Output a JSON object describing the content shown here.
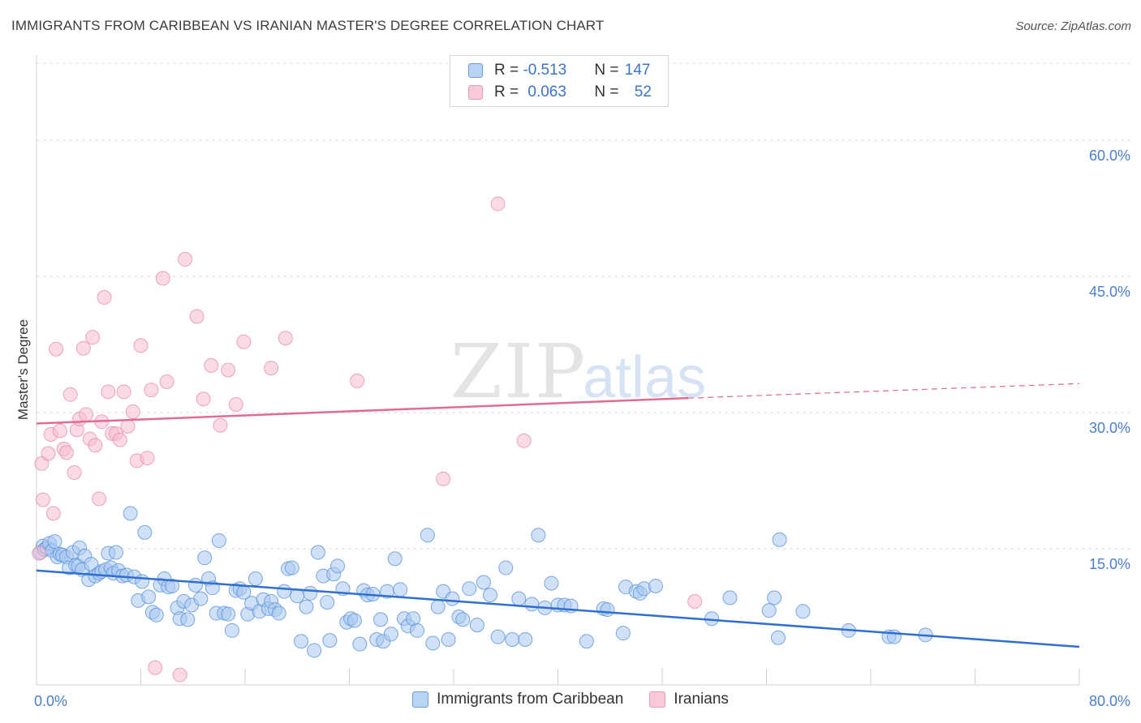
{
  "title": "IMMIGRANTS FROM CARIBBEAN VS IRANIAN MASTER'S DEGREE CORRELATION CHART",
  "source": "Source: ZipAtlas.com",
  "watermark": {
    "zip": "ZIP",
    "atlas": "atlas"
  },
  "colors": {
    "blue_fill": "#a9c8f1",
    "blue_stroke": "#5b93dc",
    "blue_line": "#2f6fd0",
    "pink_fill": "#f6bcd0",
    "pink_stroke": "#ea8eae",
    "pink_line": "#e26b93",
    "grid": "#dddddd",
    "tick_text": "#4a7fcf"
  },
  "legend": {
    "rows": [
      {
        "r_label": "R = ",
        "r_value": "-0.513",
        "n_label": "N = ",
        "n_value": "147"
      },
      {
        "r_label": "R = ",
        "r_value": "0.063",
        "n_label": "N = ",
        "n_value": "52"
      }
    ]
  },
  "bottom_legend": [
    "Immigrants from Caribbean",
    "Iranians"
  ],
  "chart_data": {
    "type": "scatter",
    "ylabel": "Master's Degree",
    "xlim": [
      0,
      80
    ],
    "ylim": [
      0,
      60
    ],
    "x_tick_labels": [
      "0.0%",
      "80.0%"
    ],
    "y_ticks": [
      15,
      30,
      45,
      60
    ],
    "y_tick_labels": [
      "15.0%",
      "30.0%",
      "45.0%",
      "60.0%"
    ],
    "grid": true,
    "series": [
      {
        "name": "Immigrants from Caribbean",
        "trend": {
          "x": [
            0,
            80
          ],
          "y": [
            12.6,
            4.2
          ]
        },
        "points": [
          [
            0.3,
            14.6
          ],
          [
            0.5,
            15.3
          ],
          [
            0.6,
            14.9
          ],
          [
            0.8,
            15.1
          ],
          [
            1.0,
            15.6
          ],
          [
            1.2,
            14.8
          ],
          [
            1.4,
            15.8
          ],
          [
            1.6,
            14.1
          ],
          [
            1.8,
            14.4
          ],
          [
            2.0,
            14.3
          ],
          [
            2.3,
            14.1
          ],
          [
            2.5,
            12.9
          ],
          [
            2.8,
            14.6
          ],
          [
            3.0,
            13.2
          ],
          [
            3.2,
            13.1
          ],
          [
            3.3,
            15.1
          ],
          [
            3.5,
            12.7
          ],
          [
            3.7,
            14.2
          ],
          [
            4.0,
            11.6
          ],
          [
            4.2,
            13.3
          ],
          [
            4.5,
            12.0
          ],
          [
            4.8,
            12.3
          ],
          [
            5.0,
            12.5
          ],
          [
            5.3,
            12.7
          ],
          [
            5.5,
            14.5
          ],
          [
            5.7,
            12.9
          ],
          [
            5.9,
            12.3
          ],
          [
            6.1,
            14.6
          ],
          [
            6.3,
            12.6
          ],
          [
            6.6,
            12.0
          ],
          [
            6.9,
            12.1
          ],
          [
            7.2,
            18.9
          ],
          [
            7.5,
            11.9
          ],
          [
            7.8,
            9.3
          ],
          [
            8.1,
            11.4
          ],
          [
            8.3,
            16.8
          ],
          [
            8.6,
            9.7
          ],
          [
            8.9,
            8.0
          ],
          [
            9.2,
            7.7
          ],
          [
            9.5,
            11.0
          ],
          [
            9.8,
            11.7
          ],
          [
            10.1,
            10.8
          ],
          [
            10.4,
            10.9
          ],
          [
            10.8,
            8.5
          ],
          [
            11.0,
            7.3
          ],
          [
            11.3,
            9.2
          ],
          [
            11.6,
            7.2
          ],
          [
            11.9,
            8.8
          ],
          [
            12.2,
            11.0
          ],
          [
            12.6,
            9.5
          ],
          [
            12.9,
            14.0
          ],
          [
            13.2,
            11.7
          ],
          [
            13.5,
            10.7
          ],
          [
            13.8,
            7.9
          ],
          [
            14.0,
            15.9
          ],
          [
            14.4,
            7.9
          ],
          [
            14.7,
            7.8
          ],
          [
            15.0,
            6.0
          ],
          [
            15.3,
            10.4
          ],
          [
            15.6,
            10.6
          ],
          [
            15.9,
            10.2
          ],
          [
            16.2,
            7.8
          ],
          [
            16.5,
            9.0
          ],
          [
            16.8,
            11.7
          ],
          [
            17.1,
            8.1
          ],
          [
            17.4,
            9.4
          ],
          [
            17.8,
            8.4
          ],
          [
            18.0,
            9.2
          ],
          [
            18.3,
            8.3
          ],
          [
            18.6,
            7.9
          ],
          [
            19.0,
            10.3
          ],
          [
            19.3,
            12.8
          ],
          [
            19.6,
            12.9
          ],
          [
            20.0,
            9.8
          ],
          [
            20.3,
            4.8
          ],
          [
            20.7,
            8.6
          ],
          [
            21.0,
            10.1
          ],
          [
            21.3,
            3.8
          ],
          [
            21.6,
            14.6
          ],
          [
            22.0,
            12.0
          ],
          [
            22.3,
            9.1
          ],
          [
            22.5,
            4.9
          ],
          [
            22.8,
            12.2
          ],
          [
            23.1,
            13.1
          ],
          [
            23.5,
            10.6
          ],
          [
            23.8,
            6.9
          ],
          [
            24.1,
            7.3
          ],
          [
            24.4,
            7.1
          ],
          [
            24.8,
            4.5
          ],
          [
            25.1,
            10.4
          ],
          [
            25.4,
            9.9
          ],
          [
            25.8,
            10.0
          ],
          [
            26.1,
            5.0
          ],
          [
            26.4,
            7.2
          ],
          [
            26.6,
            4.8
          ],
          [
            26.9,
            10.3
          ],
          [
            27.2,
            5.6
          ],
          [
            27.5,
            13.9
          ],
          [
            27.9,
            10.5
          ],
          [
            28.2,
            7.3
          ],
          [
            28.5,
            6.5
          ],
          [
            28.9,
            7.3
          ],
          [
            29.2,
            6.0
          ],
          [
            30.0,
            16.5
          ],
          [
            30.4,
            4.6
          ],
          [
            30.8,
            8.6
          ],
          [
            31.2,
            10.3
          ],
          [
            31.6,
            5.0
          ],
          [
            31.9,
            9.5
          ],
          [
            32.4,
            7.5
          ],
          [
            32.7,
            7.2
          ],
          [
            33.2,
            10.6
          ],
          [
            33.8,
            6.6
          ],
          [
            34.3,
            11.3
          ],
          [
            34.8,
            9.9
          ],
          [
            35.4,
            5.3
          ],
          [
            36.0,
            12.9
          ],
          [
            36.5,
            5.0
          ],
          [
            37.0,
            9.5
          ],
          [
            37.5,
            5.0
          ],
          [
            38.0,
            8.9
          ],
          [
            38.5,
            16.5
          ],
          [
            39.0,
            8.5
          ],
          [
            39.5,
            11.2
          ],
          [
            40.0,
            8.8
          ],
          [
            40.5,
            8.8
          ],
          [
            41.0,
            8.7
          ],
          [
            42.2,
            4.8
          ],
          [
            43.5,
            8.4
          ],
          [
            43.8,
            8.3
          ],
          [
            45.0,
            5.7
          ],
          [
            45.2,
            10.8
          ],
          [
            46.0,
            10.3
          ],
          [
            46.3,
            10.1
          ],
          [
            46.6,
            10.6
          ],
          [
            47.5,
            10.9
          ],
          [
            51.8,
            7.3
          ],
          [
            53.2,
            9.6
          ],
          [
            56.2,
            8.2
          ],
          [
            56.6,
            9.6
          ],
          [
            56.9,
            5.2
          ],
          [
            57.0,
            16.0
          ],
          [
            58.8,
            8.1
          ],
          [
            62.3,
            6.0
          ],
          [
            65.4,
            5.3
          ],
          [
            65.8,
            5.3
          ],
          [
            68.2,
            5.5
          ]
        ]
      },
      {
        "name": "Iranians",
        "trend": {
          "x": [
            0,
            50
          ],
          "y": [
            28.8,
            31.6
          ]
        },
        "dashed_extension": {
          "x": [
            50,
            80
          ],
          "y": [
            31.6,
            33.2
          ]
        },
        "points": [
          [
            0.4,
            24.4
          ],
          [
            0.5,
            20.4
          ],
          [
            0.9,
            25.5
          ],
          [
            1.1,
            27.6
          ],
          [
            1.3,
            18.9
          ],
          [
            1.5,
            37.0
          ],
          [
            1.8,
            28.0
          ],
          [
            2.1,
            26.0
          ],
          [
            2.3,
            25.6
          ],
          [
            2.6,
            32.0
          ],
          [
            2.9,
            23.4
          ],
          [
            3.1,
            28.1
          ],
          [
            3.3,
            29.3
          ],
          [
            3.6,
            37.1
          ],
          [
            3.8,
            29.8
          ],
          [
            4.1,
            27.1
          ],
          [
            4.3,
            38.3
          ],
          [
            4.5,
            26.4
          ],
          [
            4.8,
            20.5
          ],
          [
            5.0,
            29.0
          ],
          [
            5.2,
            42.7
          ],
          [
            5.5,
            32.3
          ],
          [
            5.8,
            27.7
          ],
          [
            6.1,
            27.7
          ],
          [
            6.4,
            27.0
          ],
          [
            6.7,
            32.3
          ],
          [
            7.0,
            28.5
          ],
          [
            7.4,
            30.1
          ],
          [
            7.7,
            24.7
          ],
          [
            8.0,
            37.4
          ],
          [
            8.5,
            25.0
          ],
          [
            8.8,
            32.5
          ],
          [
            9.1,
            1.9
          ],
          [
            9.7,
            44.8
          ],
          [
            10.0,
            33.4
          ],
          [
            11.0,
            1.1
          ],
          [
            11.4,
            46.9
          ],
          [
            12.3,
            40.6
          ],
          [
            12.8,
            31.5
          ],
          [
            13.4,
            35.2
          ],
          [
            14.1,
            28.6
          ],
          [
            14.7,
            34.7
          ],
          [
            15.3,
            30.9
          ],
          [
            15.9,
            37.8
          ],
          [
            18.0,
            34.9
          ],
          [
            19.1,
            38.2
          ],
          [
            24.6,
            33.5
          ],
          [
            31.2,
            22.7
          ],
          [
            35.4,
            53.0
          ],
          [
            37.4,
            26.9
          ],
          [
            50.5,
            9.2
          ],
          [
            0.2,
            14.5
          ]
        ]
      }
    ]
  }
}
